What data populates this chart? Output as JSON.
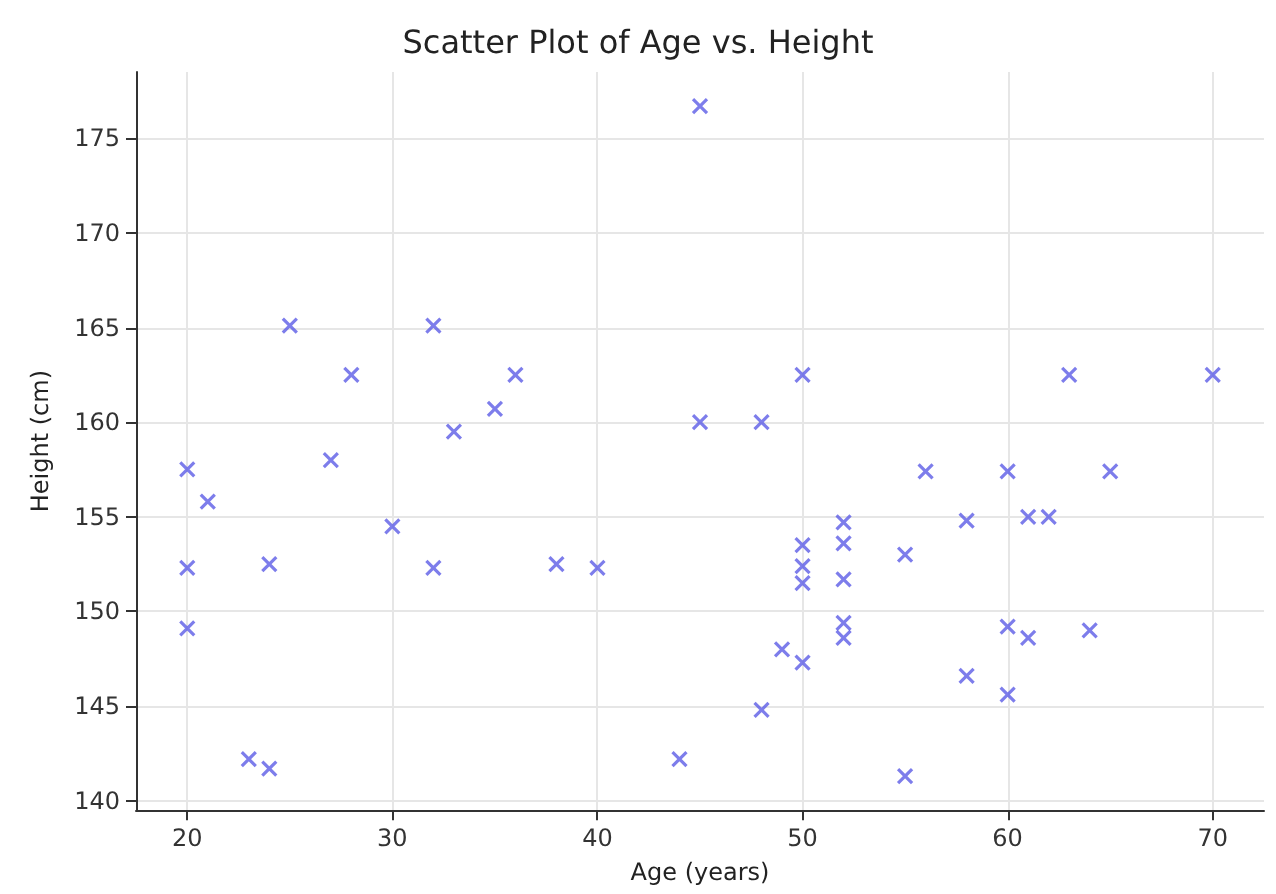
{
  "chart_data": {
    "type": "scatter",
    "title": "Scatter Plot of Age vs. Height",
    "xlabel": "Age (years)",
    "ylabel": "Height (cm)",
    "x": [
      20,
      20,
      20,
      21,
      23,
      24,
      24,
      25,
      27,
      28,
      30,
      32,
      32,
      33,
      35,
      36,
      38,
      40,
      44,
      45,
      45,
      48,
      48,
      49,
      50,
      50,
      50,
      50,
      50,
      52,
      52,
      52,
      52,
      52,
      55,
      55,
      56,
      58,
      58,
      60,
      60,
      60,
      61,
      61,
      62,
      63,
      64,
      65,
      70
    ],
    "values": [
      157.5,
      152.3,
      149.1,
      155.8,
      142.2,
      141.7,
      152.5,
      165.1,
      158,
      162.5,
      154.5,
      165.1,
      152.3,
      159.5,
      160.7,
      162.5,
      152.5,
      152.3,
      142.2,
      176.7,
      160,
      160,
      144.8,
      148,
      162.5,
      153.5,
      152.4,
      151.5,
      147.3,
      154.7,
      153.6,
      151.7,
      149.4,
      148.6,
      153,
      141.3,
      157.4,
      154.8,
      146.6,
      157.4,
      149.2,
      145.6,
      155,
      148.6,
      155,
      162.5,
      149,
      157.4,
      162.5
    ],
    "color": "#5c5ce6",
    "marker": "cross",
    "grid": true,
    "xlim": [
      17.5,
      72.5
    ],
    "xticks": [
      20,
      30,
      40,
      50,
      60,
      70
    ],
    "ylim": [
      139.5,
      178.5
    ],
    "yticks": [
      140,
      145,
      150,
      155,
      160,
      165,
      170,
      175
    ]
  }
}
